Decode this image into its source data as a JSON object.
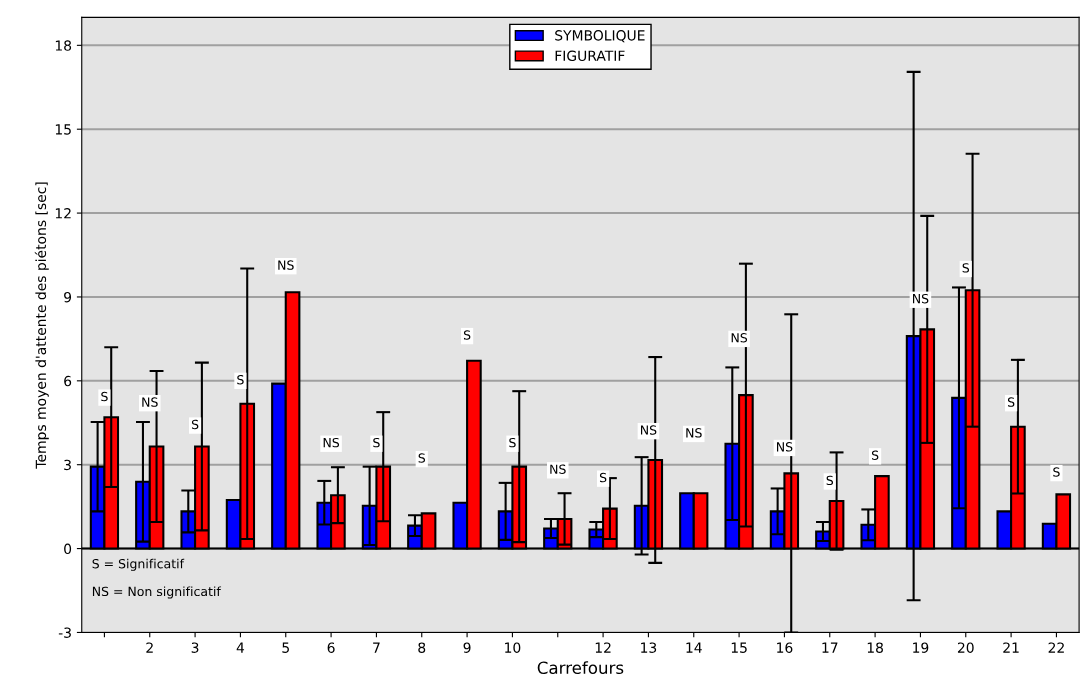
{
  "chart_data": {
    "type": "bar",
    "xlabel": "Carrefours",
    "ylabel": "Temps moyen d'attente des piétons [sec]",
    "categories": [
      null,
      "2",
      "3",
      "4",
      "5",
      "6",
      "7",
      "8",
      "9",
      "10",
      null,
      "12",
      "13",
      "14",
      "15",
      "16",
      "17",
      "18",
      "19",
      "20",
      "21",
      "22"
    ],
    "series": [
      {
        "name": "SYMBOLIQUE",
        "color": "#0000ff",
        "values": [
          2.93,
          2.39,
          1.33,
          1.74,
          5.9,
          1.64,
          1.53,
          0.82,
          1.64,
          1.33,
          0.72,
          0.68,
          1.53,
          1.98,
          3.75,
          1.33,
          0.61,
          0.85,
          7.6,
          5.39,
          1.33,
          0.89
        ],
        "errors": [
          1.6,
          2.14,
          0.75,
          null,
          null,
          0.78,
          1.4,
          0.37,
          null,
          1.02,
          0.34,
          0.27,
          1.74,
          null,
          2.73,
          0.82,
          0.34,
          0.55,
          9.45,
          3.95,
          null,
          null
        ]
      },
      {
        "name": "FIGURATIF",
        "color": "#ff0000",
        "values": [
          4.7,
          3.65,
          3.65,
          5.18,
          9.17,
          1.91,
          2.93,
          1.26,
          6.72,
          2.93,
          1.06,
          1.43,
          3.17,
          1.98,
          5.49,
          2.69,
          1.7,
          2.59,
          7.84,
          9.24,
          4.36,
          1.94
        ],
        "errors": [
          2.5,
          2.7,
          3.0,
          4.84,
          null,
          1.0,
          1.95,
          null,
          null,
          2.7,
          0.92,
          1.09,
          3.68,
          null,
          4.7,
          5.69,
          1.74,
          null,
          4.06,
          4.88,
          2.39,
          null
        ]
      }
    ],
    "ylim": [
      -3,
      19
    ],
    "yticks": [
      -3,
      0,
      3,
      6,
      9,
      12,
      15,
      18
    ],
    "grid": "y",
    "legend": "top",
    "annotations": [
      {
        "text": "S",
        "y": 5.4
      },
      {
        "text": "NS",
        "x": "2",
        "y": 5.2
      },
      {
        "text": "S",
        "x": "3",
        "y": 4.4
      },
      {
        "text": "S",
        "x": "4",
        "y": 6.0
      },
      {
        "text": "NS",
        "x": "5",
        "y": 10.1
      },
      {
        "text": "NS",
        "x": "6",
        "y": 3.75
      },
      {
        "text": "S",
        "x": "7",
        "y": 3.75
      },
      {
        "text": "S",
        "x": "8",
        "y": 3.2
      },
      {
        "text": "S",
        "x": "9",
        "y": 7.6
      },
      {
        "text": "S",
        "x": "10",
        "y": 3.75
      },
      {
        "text": "NS",
        "y": 2.8
      },
      {
        "text": "S",
        "x": "12",
        "y": 2.5
      },
      {
        "text": "NS",
        "x": "13",
        "y": 4.2
      },
      {
        "text": "NS",
        "x": "14",
        "y": 4.1
      },
      {
        "text": "NS",
        "x": "15",
        "y": 7.5
      },
      {
        "text": "NS",
        "x": "16",
        "y": 3.6
      },
      {
        "text": "S",
        "x": "17",
        "y": 2.4
      },
      {
        "text": "S",
        "x": "18",
        "y": 3.3
      },
      {
        "text": "NS",
        "x": "19",
        "y": 8.9
      },
      {
        "text": "S",
        "x": "20",
        "y": 10.0
      },
      {
        "text": "S",
        "x": "21",
        "y": 5.2
      },
      {
        "text": "S",
        "x": "22",
        "y": 2.7
      },
      "S = Significatif",
      "NS = Non significatif"
    ]
  }
}
